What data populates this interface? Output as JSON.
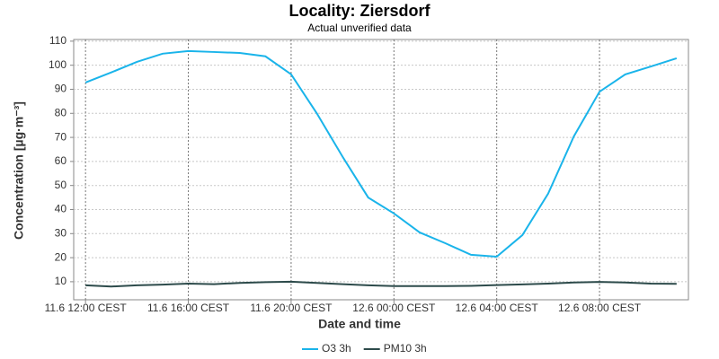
{
  "chart_data": {
    "type": "line",
    "title": "Locality: Ziersdorf",
    "subtitle": "Actual unverified data",
    "x_label": "Date and time",
    "y_label": "Concentration [µg·m⁻³]",
    "x": [
      "11.6 12:00 CEST",
      "11.6 13:00 CEST",
      "11.6 14:00 CEST",
      "11.6 15:00 CEST",
      "11.6 16:00 CEST",
      "11.6 17:00 CEST",
      "11.6 18:00 CEST",
      "11.6 19:00 CEST",
      "11.6 20:00 CEST",
      "11.6 21:00 CEST",
      "11.6 22:00 CEST",
      "11.6 23:00 CEST",
      "12.6 00:00 CEST",
      "12.6 01:00 CEST",
      "12.6 02:00 CEST",
      "12.6 03:00 CEST",
      "12.6 04:00 CEST",
      "12.6 05:00 CEST",
      "12.6 06:00 CEST",
      "12.6 07:00 CEST",
      "12.6 08:00 CEST",
      "12.6 09:00 CEST",
      "12.6 10:00 CEST",
      "12.6 11:00 CEST"
    ],
    "xticks": [
      "11.6 12:00 CEST",
      "11.6 16:00 CEST",
      "11.6 20:00 CEST",
      "12.6 00:00 CEST",
      "12.6 04:00 CEST",
      "12.6 08:00 CEST"
    ],
    "series": [
      {
        "name": "O3 3h",
        "color": "#1ab4ea",
        "values": [
          92.8,
          97,
          101.4,
          104.8,
          105.9,
          105.5,
          105.1,
          103.7,
          96.2,
          80,
          62,
          45,
          38.4,
          30.5,
          26,
          21.2,
          20.4,
          29.4,
          46.6,
          70.4,
          89,
          96.2,
          99.5,
          102.9
        ]
      },
      {
        "name": "PM10 3h",
        "color": "#2d4b4b",
        "values": [
          8.5,
          8,
          8.5,
          8.8,
          9.2,
          9,
          9.5,
          9.8,
          10,
          9.5,
          9,
          8.5,
          8.2,
          8.2,
          8.2,
          8.3,
          8.6,
          8.9,
          9.2,
          9.7,
          9.9,
          9.7,
          9.2,
          9.1
        ]
      }
    ],
    "ylim": [
      2.5,
      110.7
    ],
    "yticks": [
      10,
      20,
      30,
      40,
      50,
      60,
      70,
      80,
      90,
      100,
      110
    ],
    "grid": true,
    "legend": "bottom"
  }
}
